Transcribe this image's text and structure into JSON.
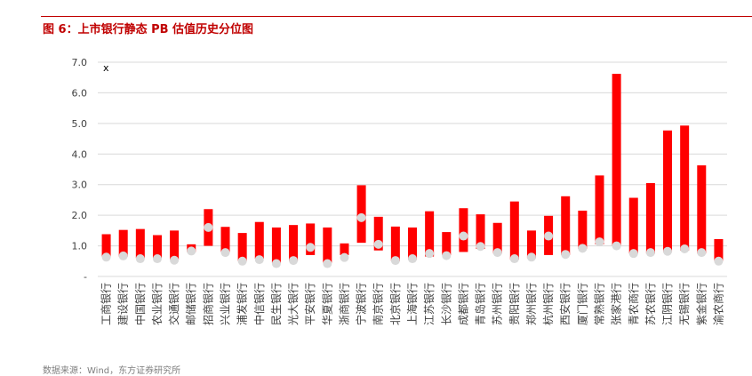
{
  "figure": {
    "title": "图 6：上市银行静态 PB 估值历史分位图",
    "source": "数据来源：Wind，东方证券研究所"
  },
  "colors": {
    "bar": "#ff0000",
    "marker": "#d9d9d9",
    "title": "#c00000",
    "grid": "#d9d9d9"
  },
  "chart_data": {
    "type": "bar",
    "title": "",
    "xlabel": "",
    "ylabel": "",
    "unit_label": "x",
    "ylim": [
      0,
      7
    ],
    "yticks": [
      "-",
      "1.0",
      "2.0",
      "3.0",
      "4.0",
      "5.0",
      "6.0",
      "7.0"
    ],
    "grid": true,
    "legend": "none",
    "categories": [
      "工商银行",
      "建设银行",
      "中国银行",
      "农业银行",
      "交通银行",
      "邮储银行",
      "招商银行",
      "兴业银行",
      "浦发银行",
      "中信银行",
      "民生银行",
      "光大银行",
      "平安银行",
      "华夏银行",
      "浙商银行",
      "宁波银行",
      "南京银行",
      "北京银行",
      "上海银行",
      "江苏银行",
      "长沙银行",
      "成都银行",
      "青岛银行",
      "苏州银行",
      "贵阳银行",
      "郑州银行",
      "杭州银行",
      "西安银行",
      "厦门银行",
      "常熟银行",
      "张家港行",
      "青农商行",
      "苏农银行",
      "江阴银行",
      "无锡银行",
      "紫金银行",
      "渝农商行"
    ],
    "series": [
      {
        "values_low": [
          0.65,
          0.65,
          0.6,
          0.6,
          0.55,
          0.8,
          1.0,
          0.8,
          0.5,
          0.58,
          0.45,
          0.5,
          0.7,
          0.45,
          0.7,
          1.1,
          0.85,
          0.5,
          0.55,
          0.65,
          0.7,
          0.8,
          0.9,
          0.75,
          0.55,
          0.6,
          0.7,
          0.7,
          0.9,
          1.05,
          1.0,
          0.75,
          0.75,
          0.8,
          0.85,
          0.75,
          0.5
        ]
      },
      {
        "values_high": [
          1.38,
          1.52,
          1.55,
          1.35,
          1.5,
          1.05,
          2.2,
          1.62,
          1.42,
          1.78,
          1.6,
          1.68,
          1.73,
          1.6,
          1.08,
          2.98,
          1.95,
          1.63,
          1.6,
          2.13,
          1.45,
          2.23,
          2.03,
          1.75,
          2.45,
          1.5,
          1.98,
          2.62,
          2.15,
          3.3,
          6.62,
          2.57,
          3.05,
          4.77,
          4.93,
          3.63,
          1.22
        ]
      },
      {
        "values_current": [
          0.63,
          0.67,
          0.58,
          0.58,
          0.53,
          0.83,
          1.6,
          0.78,
          0.5,
          0.55,
          0.42,
          0.52,
          0.95,
          0.42,
          0.62,
          1.92,
          1.05,
          0.52,
          0.58,
          0.75,
          0.68,
          1.32,
          0.98,
          0.78,
          0.58,
          0.63,
          1.32,
          0.72,
          0.92,
          1.13,
          1.0,
          0.75,
          0.78,
          0.82,
          0.9,
          0.78,
          0.5
        ]
      }
    ]
  }
}
